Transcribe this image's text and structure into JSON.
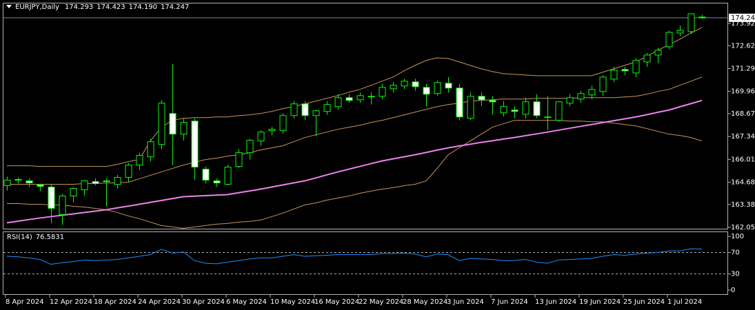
{
  "chart_data": {
    "type": "candlestick",
    "title": "EURJPY,Daily",
    "last_bar_labels": [
      "174.293",
      "174.423",
      "174.190",
      "174.247"
    ],
    "categories": [
      "8 Apr 2024",
      null,
      null,
      null,
      "12 Apr 2024",
      null,
      null,
      null,
      "18 Apr 2024",
      null,
      null,
      null,
      "24 Apr 2024",
      null,
      null,
      null,
      "30 Apr 2024",
      null,
      null,
      null,
      "6 May 2024",
      null,
      null,
      null,
      "10 May 2024",
      null,
      null,
      null,
      "16 May 2024",
      null,
      null,
      null,
      "22 May 2024",
      null,
      null,
      null,
      "28 May 2024",
      null,
      null,
      null,
      "3 Jun 2024",
      null,
      null,
      null,
      "7 Jun 2024",
      null,
      null,
      null,
      "13 Jun 2024",
      null,
      null,
      null,
      "19 Jun 2024",
      null,
      null,
      null,
      "25 Jun 2024",
      null,
      null,
      null,
      "1 Jul 2024",
      null,
      null,
      null
    ],
    "open": [
      164.48,
      164.8,
      164.76,
      164.52,
      164.4,
      162.8,
      163.88,
      164.24,
      164.72,
      164.72,
      164.56,
      164.96,
      165.68,
      166.16,
      166.88,
      168.68,
      167.48,
      168.24,
      165.44,
      164.76,
      164.56,
      165.6,
      166.4,
      167.08,
      167.68,
      167.68,
      168.56,
      169.24,
      168.56,
      168.8,
      169.08,
      169.6,
      169.48,
      169.68,
      169.68,
      170.12,
      170.28,
      170.52,
      170.2,
      169.84,
      170.44,
      170.16,
      168.4,
      169.68,
      169.44,
      168.72,
      168.88,
      168.64,
      169.36,
      168.48,
      168.28,
      169.28,
      169.52,
      169.76,
      169.96,
      170.68,
      171.24,
      171.04,
      171.68,
      172.08,
      172.56,
      173.36,
      173.44,
      174.293
    ],
    "high": [
      165.0,
      164.95,
      164.9,
      164.6,
      164.56,
      164.0,
      164.4,
      164.8,
      164.9,
      164.9,
      165.1,
      165.8,
      166.4,
      167.2,
      169.44,
      171.56,
      168.4,
      168.4,
      165.6,
      164.9,
      165.7,
      166.6,
      167.2,
      167.7,
      167.9,
      168.7,
      169.4,
      169.4,
      168.9,
      169.4,
      169.8,
      169.8,
      169.9,
      169.9,
      170.4,
      170.5,
      170.7,
      170.7,
      170.4,
      170.6,
      170.8,
      170.4,
      169.9,
      169.9,
      169.7,
      169.4,
      169.1,
      169.6,
      169.8,
      169.68,
      169.4,
      169.8,
      170.0,
      170.3,
      170.9,
      171.4,
      171.4,
      171.9,
      172.2,
      172.5,
      173.5,
      173.8,
      174.5,
      174.423
    ],
    "low": [
      164.2,
      164.6,
      164.4,
      164.16,
      162.28,
      162.2,
      163.5,
      163.9,
      164.5,
      163.28,
      164.3,
      164.7,
      165.4,
      165.9,
      166.6,
      165.68,
      167.1,
      164.8,
      164.6,
      164.4,
      164.5,
      165.5,
      166.0,
      166.8,
      167.4,
      167.5,
      168.4,
      168.3,
      167.36,
      168.6,
      168.9,
      169.3,
      169.3,
      169.2,
      169.5,
      169.9,
      170.1,
      170.0,
      169.08,
      169.7,
      169.9,
      168.28,
      168.3,
      169.1,
      168.6,
      168.5,
      168.4,
      168.4,
      168.4,
      167.72,
      168.2,
      169.1,
      169.3,
      169.5,
      169.7,
      170.5,
      170.9,
      170.8,
      171.4,
      171.6,
      172.4,
      173.2,
      173.3,
      174.19
    ],
    "close": [
      164.8,
      164.84,
      164.64,
      164.44,
      163.16,
      163.88,
      164.32,
      164.76,
      164.6,
      164.76,
      164.96,
      165.68,
      166.24,
      167.04,
      169.28,
      167.48,
      168.16,
      165.56,
      164.8,
      164.64,
      165.56,
      166.4,
      167.12,
      167.6,
      167.76,
      168.56,
      169.24,
      168.56,
      168.84,
      169.2,
      169.6,
      169.44,
      169.72,
      169.68,
      170.2,
      170.32,
      170.56,
      170.24,
      169.8,
      170.48,
      170.16,
      168.48,
      169.68,
      169.48,
      169.36,
      169.08,
      168.8,
      169.36,
      168.56,
      168.48,
      169.36,
      169.6,
      169.84,
      170.08,
      170.8,
      171.2,
      171.16,
      171.76,
      172.08,
      172.36,
      173.4,
      173.52,
      174.48,
      174.247
    ],
    "up_color": "#000000",
    "down_color": "#ffffff",
    "wick_color": "#00ff00",
    "price_line_color": "#778899",
    "series": [
      {
        "color": "#c8955a",
        "values": [
          165.64,
          165.64,
          165.64,
          165.6,
          165.6,
          165.6,
          165.6,
          165.6,
          165.6,
          165.6,
          165.72,
          165.88,
          166.0,
          167.08,
          167.88,
          168.28,
          168.4,
          168.44,
          168.44,
          168.48,
          168.48,
          168.56,
          168.6,
          168.68,
          168.8,
          168.96,
          169.08,
          169.24,
          169.4,
          169.56,
          169.72,
          169.92,
          170.08,
          170.32,
          170.56,
          170.8,
          171.16,
          171.48,
          171.76,
          171.92,
          171.88,
          171.68,
          171.48,
          171.28,
          171.12,
          171.0,
          170.96,
          170.92,
          170.88,
          170.88,
          170.88,
          170.88,
          170.88,
          170.88,
          171.08,
          171.28,
          171.48,
          171.68,
          172.0,
          172.36,
          172.68,
          173.0,
          173.36,
          173.68
        ]
      },
      {
        "color": "#c8955a",
        "values": [
          164.56,
          164.56,
          164.56,
          164.56,
          164.56,
          164.56,
          164.56,
          164.6,
          164.6,
          164.64,
          164.64,
          164.68,
          164.88,
          165.08,
          165.28,
          165.48,
          165.68,
          165.84,
          166.0,
          166.08,
          166.2,
          166.28,
          166.4,
          166.56,
          166.68,
          166.8,
          167.04,
          167.28,
          167.44,
          167.6,
          167.76,
          167.88,
          168.0,
          168.16,
          168.28,
          168.44,
          168.6,
          168.76,
          168.92,
          169.08,
          169.2,
          169.28,
          169.4,
          169.44,
          169.48,
          169.52,
          169.52,
          169.52,
          169.56,
          169.56,
          169.56,
          169.56,
          169.6,
          169.6,
          169.6,
          169.6,
          169.64,
          169.68,
          169.8,
          169.96,
          170.08,
          170.32,
          170.56,
          170.8
        ]
      },
      {
        "color": "#c8955a",
        "values": [
          163.44,
          163.44,
          163.4,
          163.4,
          163.36,
          163.36,
          163.28,
          163.24,
          163.16,
          163.08,
          162.92,
          162.72,
          162.56,
          162.36,
          162.16,
          162.08,
          162.0,
          162.08,
          162.16,
          162.24,
          162.28,
          162.36,
          162.4,
          162.48,
          162.68,
          162.88,
          163.12,
          163.36,
          163.48,
          163.64,
          163.76,
          163.88,
          164.04,
          164.16,
          164.28,
          164.36,
          164.48,
          164.56,
          164.76,
          165.48,
          166.28,
          166.68,
          167.08,
          167.48,
          167.88,
          168.08,
          168.28,
          168.28,
          168.28,
          168.28,
          168.28,
          168.24,
          168.24,
          168.2,
          168.2,
          168.12,
          168.04,
          167.96,
          167.8,
          167.64,
          167.48,
          167.4,
          167.28,
          167.08
        ]
      },
      {
        "color": "#ee82ee",
        "width": 2,
        "values": [
          162.32,
          162.41,
          162.51,
          162.6,
          162.68,
          162.76,
          162.84,
          162.92,
          163.0,
          163.08,
          163.19,
          163.29,
          163.4,
          163.51,
          163.62,
          163.73,
          163.84,
          163.87,
          163.9,
          163.93,
          163.96,
          164.07,
          164.17,
          164.28,
          164.4,
          164.52,
          164.64,
          164.76,
          164.93,
          165.11,
          165.28,
          165.44,
          165.6,
          165.76,
          165.92,
          166.04,
          166.16,
          166.28,
          166.41,
          166.55,
          166.68,
          166.79,
          166.89,
          167.0,
          167.09,
          167.19,
          167.28,
          167.39,
          167.49,
          167.6,
          167.71,
          167.82,
          167.93,
          168.04,
          168.15,
          168.26,
          168.37,
          168.48,
          168.61,
          168.75,
          168.88,
          169.07,
          169.25,
          169.44
        ]
      }
    ],
    "ylim": [
      161.936,
      174.882
    ],
    "yticks": [
      162.055,
      163.385,
      {
        "value": 164.68,
        "label": "164.680"
      },
      {
        "value": 166.01,
        "label": "166.010"
      },
      {
        "value": 167.34,
        "label": "167.340"
      },
      {
        "value": 168.67,
        "label": "168.670"
      },
      169.965,
      171.295,
      172.625,
      {
        "value": 173.92,
        "label": "173.920"
      }
    ],
    "rsi": {
      "title": "RSI(14)",
      "color": "#1e90ff",
      "values": [
        63,
        62,
        60,
        57,
        48,
        51,
        53,
        56,
        55,
        56,
        57,
        60,
        63,
        66,
        76,
        69,
        71,
        55,
        50,
        49,
        52,
        55,
        58,
        60,
        60,
        63,
        66,
        63,
        64,
        65,
        66,
        66,
        66,
        66,
        68,
        68,
        69,
        67,
        62,
        67,
        66,
        55,
        59,
        58,
        57,
        55,
        55,
        57,
        52,
        50,
        56,
        57,
        58,
        59,
        63,
        66,
        65,
        67,
        69,
        70,
        73,
        73,
        77,
        76.5831
      ],
      "ylim": [
        -9,
        108
      ],
      "yticks": [
        0,
        30,
        70,
        100
      ],
      "levels": [
        30,
        70
      ]
    }
  }
}
